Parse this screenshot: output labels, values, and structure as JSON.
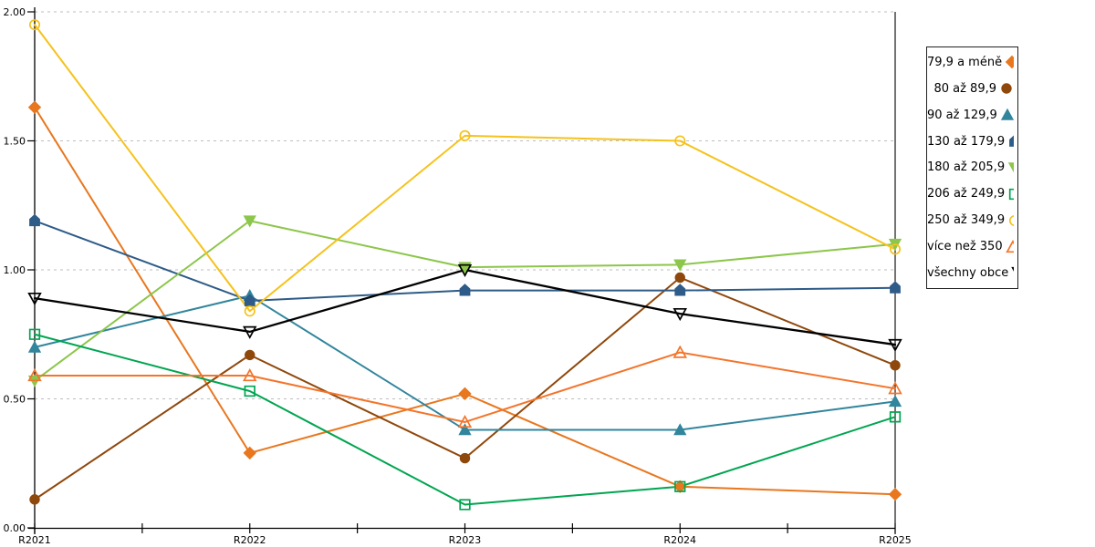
{
  "chart_data": {
    "type": "line",
    "title": "",
    "xlabel": "",
    "ylabel": "",
    "categories": [
      "R2021",
      "R2022",
      "R2023",
      "R2024",
      "R2025"
    ],
    "ylim": [
      0.0,
      2.0
    ],
    "yticks": [
      0.0,
      0.5,
      1.0,
      1.5,
      2.0
    ],
    "ytick_labels": [
      "0.00",
      "0.50",
      "1.00",
      "1.50",
      "2.00"
    ],
    "grid": "horizontal-dashed",
    "gridline_color": "#bdbdbd",
    "axis_color": "#000000",
    "legend_position": "right",
    "series": [
      {
        "name": "79,9 a méně",
        "marker": "diamond",
        "style": "filled",
        "color": "#E8771E",
        "values": [
          1.63,
          0.29,
          0.52,
          0.16,
          0.13
        ]
      },
      {
        "name": "80 až 89,9",
        "marker": "circle",
        "style": "filled",
        "color": "#8F480C",
        "values": [
          0.11,
          0.67,
          0.27,
          0.97,
          0.63
        ]
      },
      {
        "name": "90 až 129,9",
        "marker": "triangle-up",
        "style": "filled",
        "color": "#31859C",
        "values": [
          0.7,
          0.9,
          0.38,
          0.38,
          0.49
        ]
      },
      {
        "name": "130 až 179,9",
        "marker": "pentagon",
        "style": "filled",
        "color": "#2E5B88",
        "values": [
          1.19,
          0.88,
          0.92,
          0.92,
          0.93
        ]
      },
      {
        "name": "180 až 205,9",
        "marker": "triangle-down",
        "style": "filled",
        "color": "#8CC64A",
        "values": [
          0.57,
          1.19,
          1.01,
          1.02,
          1.1
        ]
      },
      {
        "name": "206 až 249,9",
        "marker": "square",
        "style": "outline",
        "color": "#00A551",
        "values": [
          0.75,
          0.53,
          0.09,
          0.16,
          0.43
        ]
      },
      {
        "name": "250 až 349,9",
        "marker": "circle",
        "style": "outline",
        "color": "#F5C21C",
        "values": [
          1.95,
          0.84,
          1.52,
          1.5,
          1.08
        ]
      },
      {
        "name": "více než 350",
        "marker": "triangle-up",
        "style": "outline",
        "color": "#F4742A",
        "values": [
          0.59,
          0.59,
          0.41,
          0.68,
          0.54
        ]
      },
      {
        "name": "všechny obce",
        "marker": "triangle-down",
        "style": "outline",
        "color": "#000000",
        "values": [
          0.89,
          0.76,
          1.0,
          0.83,
          0.71
        ]
      }
    ]
  }
}
